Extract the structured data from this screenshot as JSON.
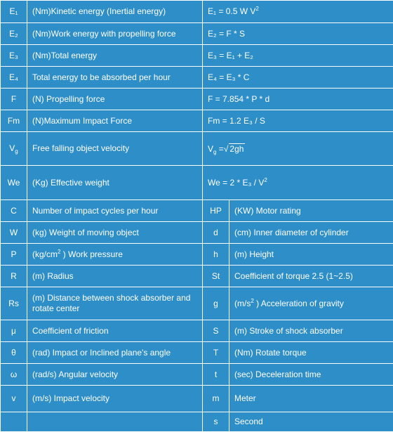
{
  "colors": {
    "blue": "#2e8ec7",
    "orange": "#e86c0c",
    "text": "#ffffff"
  },
  "top_rows": [
    {
      "sym": "E₁",
      "desc": "(Nm)Kinetic energy (Inertial energy)",
      "formula_pre": "E₁ =   0.5 W V",
      "formula_sup": "2"
    },
    {
      "sym": "E₂",
      "desc": "(Nm)Work energy with propelling force",
      "formula": "E₂ =   F * S"
    },
    {
      "sym": "E₃",
      "desc": "(Nm)Total energy",
      "formula": "E₃ =   E₁  + E₂"
    },
    {
      "sym": "E₄",
      "desc": "Total energy to be absorbed per hour",
      "formula": "E₄ =   E₃   * C"
    },
    {
      "sym": "F",
      "desc": "(N) Propelling force",
      "formula": "F = 7.854 * P * d"
    },
    {
      "sym": "Fm",
      "desc": "(N)Maximum Impact Force",
      "formula": "Fm = 1.2 E₃ / S"
    },
    {
      "sym_base": "V",
      "sym_sub": "g",
      "desc": "Free falling object velocity",
      "formula_base": "V",
      "formula_sub": "g",
      "formula_eq": " =",
      "formula_sqrt": "2gh"
    },
    {
      "sym": "We",
      "desc": "(Kg) Effective weight",
      "formula_pre": "We = 2 * E₃ / V",
      "formula_sup": "2"
    }
  ],
  "bottom_rows": [
    {
      "ls": "C",
      "ld": "Number of impact cycles per hour",
      "rs": "HP",
      "rd": "(KW) Motor rating"
    },
    {
      "ls": "W",
      "ld": "(kg) Weight of moving object",
      "rs": "d",
      "rd": "(cm) Inner diameter of cylinder"
    },
    {
      "ls": "P",
      "ld_pre": "(kg/cm",
      "ld_sup": "2",
      "ld_post": " ) Work pressure",
      "rs": "h",
      "rd": "(m) Height"
    },
    {
      "ls": "R",
      "ld": "(m) Radius",
      "rs": "St",
      "rd": "Coefficient of torque 2.5 (1~2.5)"
    },
    {
      "ls": "Rs",
      "ld": "(m) Distance between shock absorber and rotate center",
      "rs": "g",
      "rd_pre": "(m/s",
      "rd_sup": "2",
      "rd_post": " ) Acceleration of gravity"
    },
    {
      "ls": "μ",
      "ld": "Coefficient of friction",
      "rs": "S",
      "rd": "(m) Stroke of shock absorber"
    },
    {
      "ls": "θ",
      "ld": "(rad) Impact or Inclined plane's angle",
      "rs": "T",
      "rd": "(Nm) Rotate torque"
    },
    {
      "ls": "ω",
      "ld": "(rad/s) Angular velocity",
      "rs": "t",
      "rd": "(sec) Deceleration time"
    },
    {
      "ls": "v",
      "ld": "(m/s) Impact velocity",
      "rs": "m",
      "rd": "Meter"
    },
    {
      "ls": "",
      "ld": "",
      "rs": "s",
      "rd": "Second"
    }
  ]
}
